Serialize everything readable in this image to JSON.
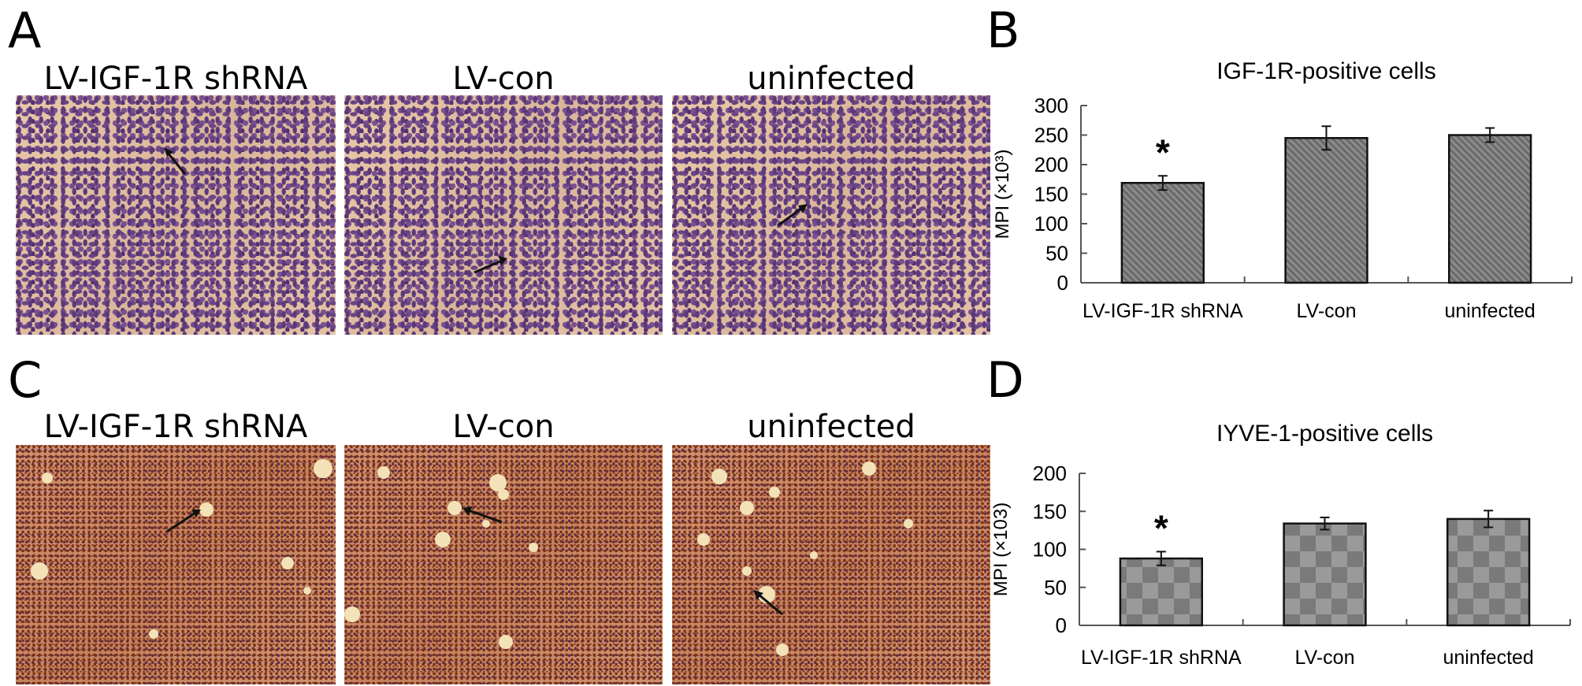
{
  "panels": {
    "A": {
      "letter": "A",
      "titles": [
        "LV-IGF-1R shRNA",
        "LV-con",
        "uninfected"
      ]
    },
    "B": {
      "letter": "B"
    },
    "C": {
      "letter": "C",
      "titles": [
        "LV-IGF-1R shRNA",
        "LV-con",
        "uninfected"
      ]
    },
    "D": {
      "letter": "D"
    }
  },
  "chart_data": [
    {
      "type": "bar",
      "title": "IGF-1R-positive cells",
      "ylabel": "MPI (×10³)",
      "categories": [
        "LV-IGF-1R shRNA",
        "LV-con",
        "uninfected"
      ],
      "values": [
        169,
        245,
        250
      ],
      "errors": [
        12,
        20,
        12
      ],
      "annotations": [
        "*",
        "",
        ""
      ],
      "ylim": [
        0,
        300
      ],
      "yticks": [
        "0",
        "50",
        "100",
        "150",
        "200",
        "250",
        "300"
      ],
      "fill": "diagonal-hatch-gray",
      "grid": false
    },
    {
      "type": "bar",
      "title": "IYVE-1-positive cells",
      "ylabel": "MPI (×103)",
      "categories": [
        "LV-IGF-1R shRNA",
        "LV-con",
        "uninfected"
      ],
      "values": [
        88,
        134,
        140
      ],
      "errors": [
        9,
        8,
        11
      ],
      "annotations": [
        "*",
        "",
        ""
      ],
      "ylim": [
        0,
        200
      ],
      "yticks": [
        "0",
        "50",
        "100",
        "150",
        "200"
      ],
      "fill": "checker-gray",
      "grid": false
    }
  ]
}
